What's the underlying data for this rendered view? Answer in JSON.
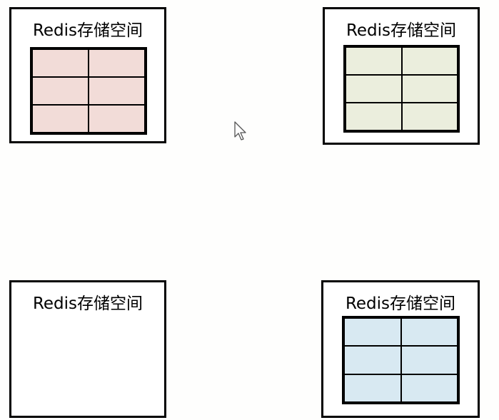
{
  "boxes": [
    {
      "id": "top-left",
      "title": "Redis存储空间",
      "has_grid": true,
      "fill": "#f2dcd8"
    },
    {
      "id": "top-right",
      "title": "Redis存储空间",
      "has_grid": true,
      "fill": "#ebeedd"
    },
    {
      "id": "bottom-left",
      "title": "Redis存储空间",
      "has_grid": false,
      "fill": null
    },
    {
      "id": "bottom-right",
      "title": "Redis存储空间",
      "has_grid": true,
      "fill": "#d8e9f2"
    }
  ],
  "grid": {
    "rows": 3,
    "cols": 2
  },
  "cursor": {
    "icon": "arrow-cursor-icon"
  }
}
